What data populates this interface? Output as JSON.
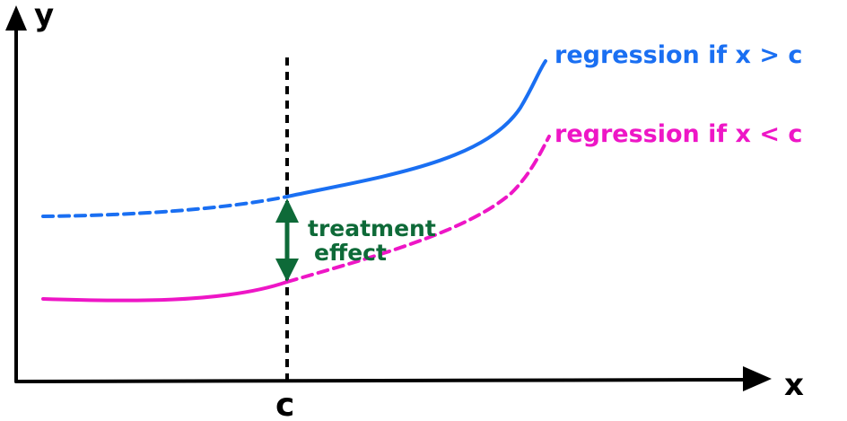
{
  "axes": {
    "y_label": "y",
    "x_label": "x",
    "cutoff_label": "c"
  },
  "curves": {
    "upper_label": "regression if x > c",
    "lower_label": "regression if x < c"
  },
  "annotation": {
    "line1": "treatment",
    "line2": "effect"
  },
  "colors": {
    "axis": "#000000",
    "upper_curve": "#1a6ff2",
    "lower_curve": "#ee16c6",
    "treatment_arrow": "#0e6a38"
  }
}
